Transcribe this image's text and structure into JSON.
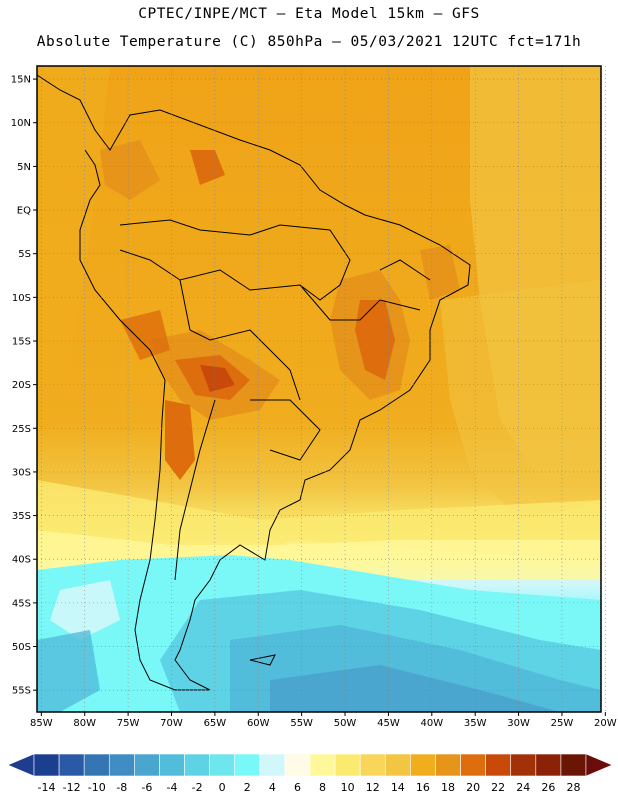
{
  "header": {
    "title_line1": "CPTEC/INPE/MCT –  Eta Model 15km – GFS",
    "title_line2": "Absolute Temperature (C) 850hPa – 05/03/2021 12UTC fct=171h"
  },
  "map": {
    "lat_labels": [
      "15N",
      "10N",
      "5N",
      "EQ",
      "5S",
      "10S",
      "15S",
      "20S",
      "25S",
      "30S",
      "35S",
      "40S",
      "45S",
      "50S",
      "55S"
    ],
    "lon_labels": [
      "85W",
      "80W",
      "75W",
      "70W",
      "65W",
      "60W",
      "55W",
      "50W",
      "45W",
      "40W",
      "35W",
      "30W",
      "25W",
      "20W"
    ],
    "lat_values": [
      15,
      10,
      5,
      0,
      -5,
      -10,
      -15,
      -20,
      -25,
      -30,
      -35,
      -40,
      -45,
      -50,
      -55
    ],
    "lon_values": [
      -85,
      -80,
      -75,
      -70,
      -65,
      -60,
      -55,
      -50,
      -45,
      -40,
      -35,
      -30,
      -25,
      -20
    ],
    "extent": {
      "lon_min": -85.5,
      "lon_max": -20.5,
      "lat_min": -57.5,
      "lat_max": 16.5
    },
    "grid": "dotted",
    "coastlines": true
  },
  "colorbar": {
    "tick_labels": [
      "-14",
      "-12",
      "-10",
      "-8",
      "-6",
      "-4",
      "-2",
      "0",
      "2",
      "4",
      "6",
      "8",
      "10",
      "12",
      "14",
      "16",
      "18",
      "20",
      "22",
      "24",
      "26",
      "28"
    ],
    "colors": [
      "#1b3f8f",
      "#2a5aa6",
      "#3575b4",
      "#3f8dc2",
      "#4aa6cf",
      "#52bcdb",
      "#5fd3e6",
      "#6ee6ee",
      "#7af7f7",
      "#d2f7fb",
      "#fffbe6",
      "#fff89a",
      "#fbea70",
      "#f7d65a",
      "#f2c542",
      "#f0ad1e",
      "#e7941a",
      "#dd6d0d",
      "#c8490a",
      "#a33108",
      "#8b2106",
      "#6b1505"
    ],
    "end_colors": {
      "low": "#1f3c8e",
      "high": "#6b0c0c"
    }
  }
}
